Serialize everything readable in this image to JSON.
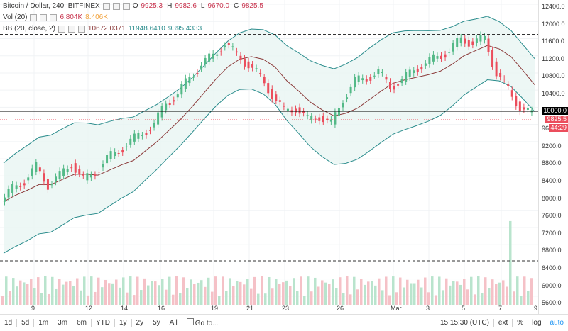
{
  "legend": {
    "symbol": "Bitcoin / Dollar, 240, BITFINEX",
    "ohlc": [
      {
        "key": "O",
        "value": "9925.3"
      },
      {
        "key": "H",
        "value": "9982.6"
      },
      {
        "key": "L",
        "value": "9670.0"
      },
      {
        "key": "C",
        "value": "9825.5"
      }
    ],
    "vol_label": "Vol (20)",
    "vol_values": [
      "6.804K",
      "8.406K"
    ],
    "bb_label": "BB (20, close, 2)",
    "bb_values": [
      "10672.0371",
      "11948.6410",
      "9395.4333"
    ]
  },
  "price_axis": {
    "ticks": [
      "12400.0",
      "12000.0",
      "11600.0",
      "11200.0",
      "10800.0",
      "10400.0",
      "10000.0",
      "9600.0",
      "9200.0",
      "8800.0",
      "8400.0",
      "8000.0",
      "7600.0",
      "7200.0",
      "6800.0",
      "6400.0",
      "6000.0",
      "5600.0"
    ],
    "current_price": "9825.5",
    "countdown": "44:29",
    "horizontal_line": "10000.0"
  },
  "time_axis": {
    "ticks": [
      "9",
      "12",
      "14",
      "16",
      "19",
      "21",
      "23",
      "26",
      "Mar",
      "3",
      "5",
      "7",
      "9"
    ]
  },
  "bottom_bar": {
    "ranges": [
      "1d",
      "5d",
      "1m",
      "3m",
      "6m",
      "YTD",
      "1y",
      "2y",
      "5y",
      "All"
    ],
    "goto": "Go to...",
    "time": "15:15:30 (UTC)",
    "ext": "ext",
    "percent": "%",
    "log": "log",
    "auto": "auto"
  },
  "colors": {
    "up": "#53b987",
    "down": "#eb4d5c",
    "bb_mid": "#8b3a3a",
    "bb_band": "#2a8c8c",
    "bb_fill": "#e8f5f3"
  },
  "chart_data": {
    "type": "candlestick",
    "title": "Bitcoin / Dollar, 240, BITFINEX",
    "ylim": [
      5400,
      12500
    ],
    "x_labels": [
      "9",
      "12",
      "14",
      "16",
      "19",
      "21",
      "23",
      "26",
      "Mar",
      "3",
      "5",
      "7",
      "9"
    ],
    "close_series": [
      7800,
      8100,
      8300,
      8600,
      8200,
      8400,
      8700,
      8300,
      8500,
      8800,
      9000,
      9200,
      9400,
      9600,
      10100,
      10300,
      10700,
      11000,
      11200,
      11500,
      11200,
      11000,
      10700,
      10300,
      9900,
      10000,
      9700,
      9800,
      9600,
      10200,
      10600,
      10700,
      10800,
      10500,
      10600,
      10900,
      11000,
      11200,
      11300,
      11600,
      11500,
      11600,
      10800,
      10400,
      10000,
      9825.5
    ],
    "resistance": 11700,
    "support_marker": 10000
  }
}
